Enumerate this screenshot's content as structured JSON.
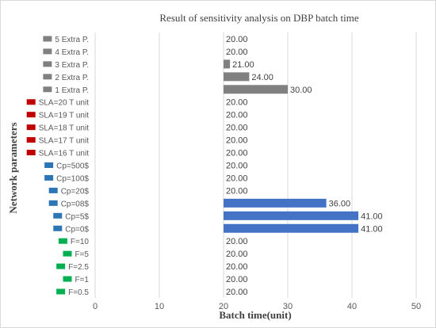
{
  "chart_data": {
    "type": "bar",
    "orientation": "horizontal",
    "title": "Result  of sensitivity analysis on DBP batch time",
    "xlabel": "Batch time(unit)",
    "ylabel": "Network parameters",
    "xlim": [
      0,
      50
    ],
    "x_ticks": [
      "0",
      "10",
      "20",
      "30",
      "40",
      "50"
    ],
    "grid": true,
    "legend": "none",
    "baseline": 20,
    "categories": [
      "5 Extra P.",
      "4 Extra P.",
      "3 Extra P.",
      "2 Extra P.",
      "1 Extra P.",
      "SLA=20 T unit",
      "SLA=19 T unit",
      "SLA=18 T unit",
      "SLA=17 T unit",
      "SLA=16 T unit",
      "Cp=500$",
      "Cp=100$",
      "Cp=20$",
      "Cp=08$",
      "Cp=5$",
      "Cp=0$",
      "F=10",
      "F=5",
      "F=2.5",
      "F=1",
      "F=0.5"
    ],
    "values": [
      20,
      20,
      21,
      24,
      30,
      20,
      20,
      20,
      20,
      20,
      20,
      20,
      20,
      36,
      41,
      41,
      20,
      20,
      20,
      20,
      20
    ],
    "value_labels": [
      "20.00",
      "20.00",
      "21.00",
      "24.00",
      "30.00",
      "20.00",
      "20.00",
      "20.00",
      "20.00",
      "20.00",
      "20.00",
      "20.00",
      "20.00",
      "36.00",
      "41.00",
      "41.00",
      "20.00",
      "20.00",
      "20.00",
      "20.00",
      "20.00"
    ],
    "groups": [
      "extra",
      "extra",
      "extra",
      "extra",
      "extra",
      "sla",
      "sla",
      "sla",
      "sla",
      "sla",
      "cp",
      "cp",
      "cp",
      "cp",
      "cp",
      "cp",
      "f",
      "f",
      "f",
      "f",
      "f"
    ],
    "group_colors": {
      "extra": "#808080",
      "sla": "#c00000",
      "cp": "#4472c4",
      "f": "#00b050"
    },
    "marker_colors": {
      "extra": "#808080",
      "sla": "#c00000",
      "cp": "#2e75b6",
      "f": "#00b050"
    }
  }
}
